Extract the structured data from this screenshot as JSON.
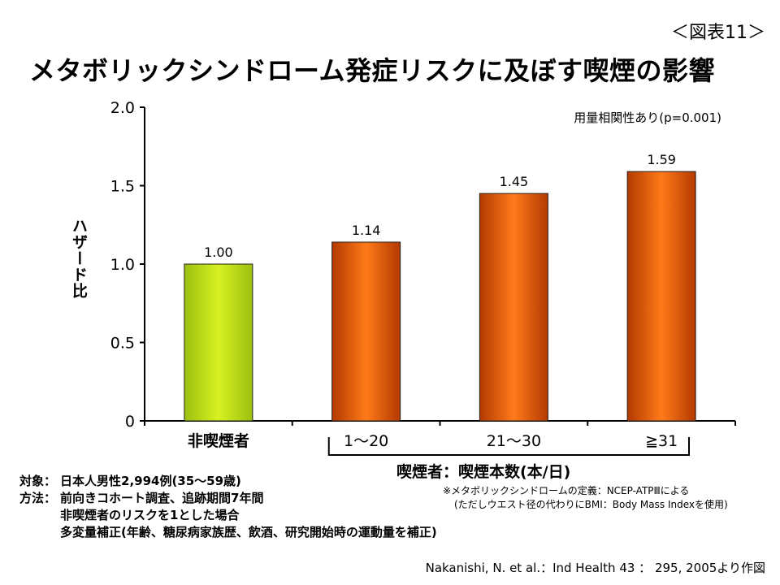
{
  "figure_number": "＜図表11＞",
  "title": "メタボリックシンドローム発症リスクに及ぼす喫煙の影響",
  "trend_note": "用量相関性あり(p=0.001)",
  "group_label": "喫煙者：喫煙本数(本/日)",
  "notes": {
    "target_key": "対象：",
    "target_value": "日本人男性2,994例(35～59歳)",
    "method_key": "方法：",
    "method_lines": [
      "前向きコホート調査、追跡期間7年間",
      "非喫煙者のリスクを1とした場合",
      "多変量補正(年齢、糖尿病家族歴、飲酒、研究開始時の運動量を補正)"
    ]
  },
  "definition": {
    "line1": "※メタボリックシンドロームの定義：NCEP-ATPⅢによる",
    "line2": "(ただしウエスト径の代わりにBMI：Body Mass Indexを使用)"
  },
  "citation": "Nakanishi, N. et al.：Ind Health 43 ： 295, 2005より作図",
  "colors": {
    "nonsmoker_fill_top": "#d6f020",
    "nonsmoker_fill_bottom": "#9cc010",
    "smoker_fill_center": "#ff7a1a",
    "smoker_fill_edge": "#b33a00"
  },
  "chart_data": {
    "type": "bar",
    "categories": [
      "非喫煙者",
      "1～20",
      "21～30",
      "≧31"
    ],
    "values": [
      1.0,
      1.14,
      1.45,
      1.59
    ],
    "value_labels": [
      "1.00",
      "1.14",
      "1.45",
      "1.59"
    ],
    "ylabel": "ハザード比",
    "ylim": [
      0,
      2.0
    ],
    "yticks": [
      0,
      0.5,
      1.0,
      1.5,
      2.0
    ],
    "ytick_labels": [
      "0",
      "0.5",
      "1.0",
      "1.5",
      "2.0"
    ],
    "grid": false,
    "legend": false
  }
}
